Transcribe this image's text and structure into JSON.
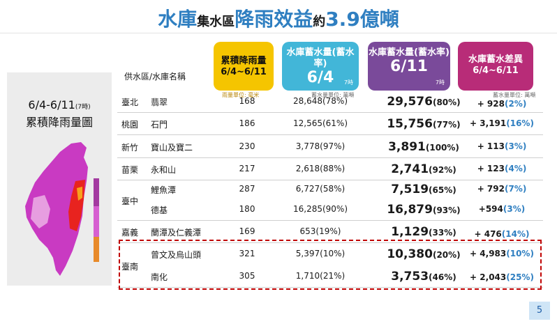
{
  "title": {
    "part1": "水庫",
    "part2": "集水區",
    "part3": "降雨效益",
    "part4": "約",
    "part5": "3.9億噸"
  },
  "side_panel": {
    "title_line1": "6/4-6/11",
    "title_sup": "(7時)",
    "title_line2": "累積降雨量圖"
  },
  "table": {
    "row_label_header": "供水區/水庫名稱",
    "headers": {
      "rain": {
        "line1": "累積降雨量",
        "line2": "6/4~6/11"
      },
      "storage_64": {
        "line1": "水庫蓄水量(蓄水率)",
        "line2": "6/4",
        "note": "7時"
      },
      "storage_611": {
        "line1": "水庫蓄水量(蓄水率)",
        "line2": "6/11",
        "note": "7時"
      },
      "diff": {
        "line1": "水庫蓄水差異",
        "line2": "6/4~6/11"
      }
    },
    "units": {
      "rain": "雨量單位: 毫米",
      "storage": "蓄水量單位: 萬噸",
      "diff": "蓄水量單位: 萬噸"
    },
    "rows": [
      {
        "city": "臺北",
        "reservoir": "翡翠",
        "rain": "168",
        "s64": "28,648(78%)",
        "s611_val": "29,576",
        "s611_pct": "(80%)",
        "diff_val": "+ 928",
        "diff_pct": "(2%)"
      },
      {
        "city": "桃園",
        "reservoir": "石門",
        "rain": "186",
        "s64": "12,565(61%)",
        "s611_val": "15,756",
        "s611_pct": "(77%)",
        "diff_val": "+ 3,191",
        "diff_pct": "(16%)"
      },
      {
        "city": "新竹",
        "reservoir": "寶山及寶二",
        "rain": "230",
        "s64": "3,778(97%)",
        "s611_val": "3,891",
        "s611_pct": "(100%)",
        "diff_val": "+ 113",
        "diff_pct": "(3%)"
      },
      {
        "city": "苗栗",
        "reservoir": "永和山",
        "rain": "217",
        "s64": "2,618(88%)",
        "s611_val": "2,741",
        "s611_pct": "(92%)",
        "diff_val": "+ 123",
        "diff_pct": "(4%)"
      },
      {
        "city": "臺中",
        "reservoir": "鯉魚潭",
        "rain": "287",
        "s64": "6,727(58%)",
        "s611_val": "7,519",
        "s611_pct": "(65%)",
        "diff_val": "+ 792",
        "diff_pct": "(7%)"
      },
      {
        "city": "",
        "reservoir": "德基",
        "rain": "180",
        "s64": "16,285(90%)",
        "s611_val": "16,879",
        "s611_pct": "(93%)",
        "diff_val": "+594",
        "diff_pct": "(3%)"
      },
      {
        "city": "嘉義",
        "reservoir": "蘭潭及仁義潭",
        "rain": "169",
        "s64": "653(19%)",
        "s611_val": "1,129",
        "s611_pct": "(33%)",
        "diff_val": "+ 476",
        "diff_pct": "(14%)"
      },
      {
        "city": "臺南",
        "reservoir": "曾文及烏山頭",
        "rain": "321",
        "s64": "5,397(10%)",
        "s611_val": "10,380",
        "s611_pct": "(20%)",
        "diff_val": "+ 4,983",
        "diff_pct": "(10%)"
      },
      {
        "city": "",
        "reservoir": "南化",
        "rain": "305",
        "s64": "1,710(21%)",
        "s611_val": "3,753",
        "s611_pct": "(46%)",
        "diff_val": "+ 2,043",
        "diff_pct": "(25%)"
      }
    ]
  },
  "page_number": "5",
  "colors": {
    "title_blue": "#2f7fc1",
    "rain_header": "#f5c500",
    "storage_64_header": "#42b6d8",
    "storage_611_header": "#7a4a9a",
    "diff_header": "#b82c78",
    "highlight_box": "#c00000"
  }
}
